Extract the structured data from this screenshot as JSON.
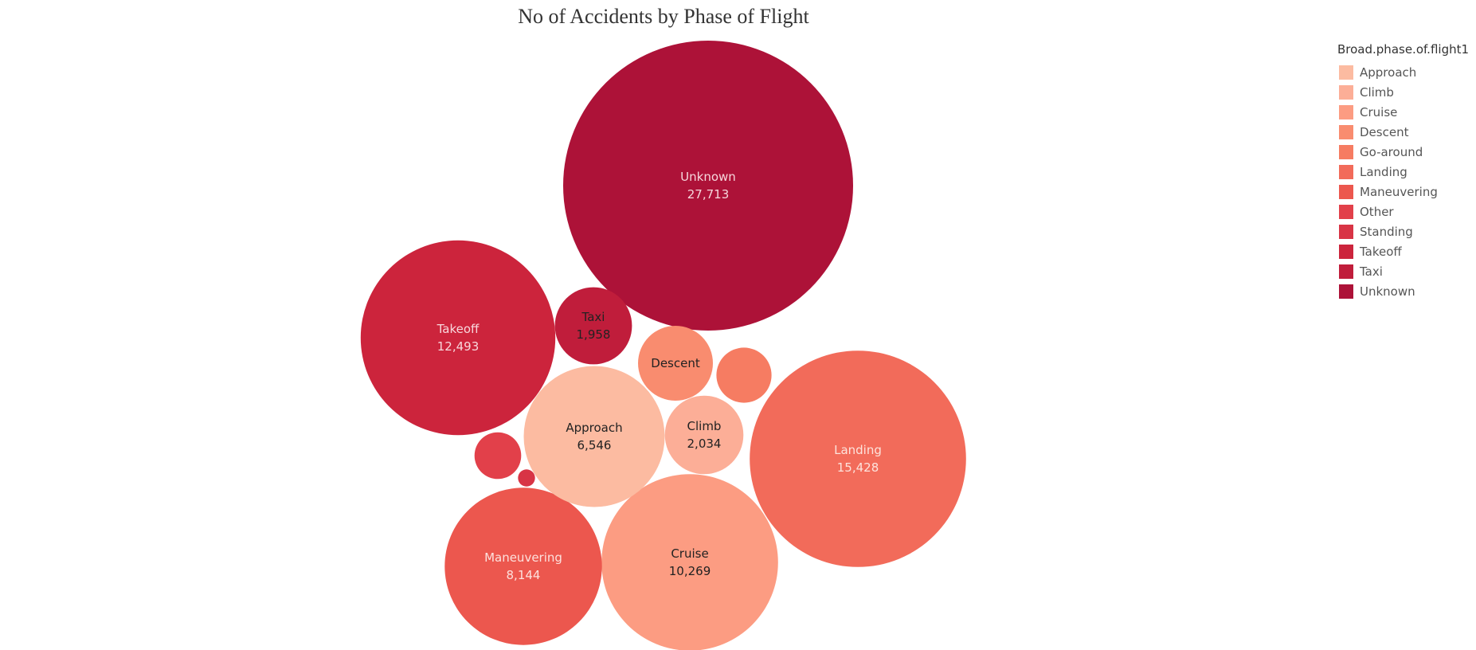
{
  "chart_data": {
    "type": "bubble",
    "title": "No of Accidents by Phase of Flight",
    "legend": {
      "title": "Broad.phase.of.flight1",
      "placement": "top-right",
      "items": [
        {
          "label": "Approach",
          "color": "#fcbba1"
        },
        {
          "label": "Climb",
          "color": "#fcae97"
        },
        {
          "label": "Cruise",
          "color": "#fc9c82"
        },
        {
          "label": "Descent",
          "color": "#f98c6f"
        },
        {
          "label": "Go-around",
          "color": "#f67c62"
        },
        {
          "label": "Landing",
          "color": "#f26b5a"
        },
        {
          "label": "Maneuvering",
          "color": "#ec574e"
        },
        {
          "label": "Other",
          "color": "#e2404a"
        },
        {
          "label": "Standing",
          "color": "#d83445"
        },
        {
          "label": "Takeoff",
          "color": "#cc243c"
        },
        {
          "label": "Taxi",
          "color": "#c01d3b"
        },
        {
          "label": "Unknown",
          "color": "#ad1238"
        }
      ]
    },
    "bubbles": [
      {
        "category": "Unknown",
        "value": 27713,
        "label": "27,713",
        "show_label": true,
        "label_color": "#f6d7dc"
      },
      {
        "category": "Landing",
        "value": 15428,
        "label": "15,428",
        "show_label": true,
        "label_color": "#fde3dc"
      },
      {
        "category": "Takeoff",
        "value": 12493,
        "label": "12,493",
        "show_label": true,
        "label_color": "#f8d7dc"
      },
      {
        "category": "Cruise",
        "value": 10269,
        "label": "10,269",
        "show_label": true,
        "label_color": "#222222"
      },
      {
        "category": "Maneuvering",
        "value": 8144,
        "label": "8,144",
        "show_label": true,
        "label_color": "#fde1dd"
      },
      {
        "category": "Approach",
        "value": 6546,
        "label": "6,546",
        "show_label": true,
        "label_color": "#222222"
      },
      {
        "category": "Climb",
        "value": 2034,
        "label": "2,034",
        "show_label": true,
        "label_color": "#222222"
      },
      {
        "category": "Taxi",
        "value": 1958,
        "label": "1,958",
        "show_label": true,
        "label_color": "#222222"
      },
      {
        "category": "Descent",
        "value": 1850,
        "label": "",
        "show_label": true,
        "label_color": "#222222"
      },
      {
        "category": "Go-around",
        "value": 1000,
        "label": "",
        "show_label": false,
        "label_color": "#222222"
      },
      {
        "category": "Other",
        "value": 720,
        "label": "",
        "show_label": false,
        "label_color": "#222222"
      },
      {
        "category": "Standing",
        "value": 95,
        "label": "",
        "show_label": false,
        "label_color": "#222222"
      }
    ]
  }
}
